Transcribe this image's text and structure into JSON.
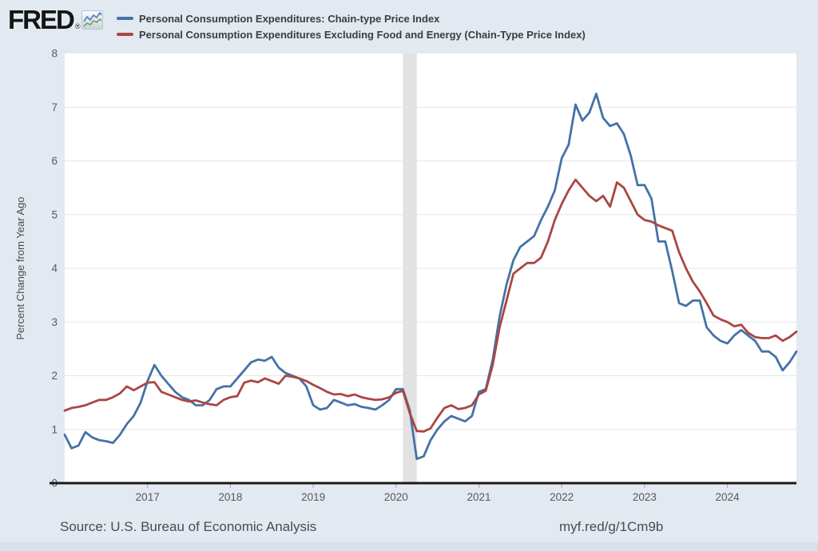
{
  "header": {
    "logo_text": "FRED",
    "registered_mark": "®"
  },
  "legend": [
    {
      "label": "Personal Consumption Expenditures: Chain-type Price Index",
      "color": "#4572a7"
    },
    {
      "label": "Personal Consumption Expenditures Excluding Food and Energy (Chain-Type Price Index)",
      "color": "#aa4643"
    }
  ],
  "footer": {
    "source": "Source: U.S. Bureau of Economic Analysis",
    "link": "myf.red/g/1Cm9b"
  },
  "colors": {
    "background": "#e3e9f1",
    "plot_background": "#ffffff",
    "gridline": "#e6e6e6",
    "zero_axis": "#1a1a1a",
    "recession_band": "#e2e2e2",
    "series_blue": "#4572a7",
    "series_red": "#aa4643"
  },
  "chart_data": {
    "type": "line",
    "title": "",
    "xlabel": "",
    "ylabel": "Percent Change from Year Ago",
    "ylim": [
      0,
      8
    ],
    "yticks": [
      0,
      1,
      2,
      3,
      4,
      5,
      6,
      7,
      8
    ],
    "grid": "horizontal",
    "legend_position": "top-left-header",
    "frequency": "monthly",
    "x_start": "2016-01",
    "x_end": "2024-11",
    "xtick_labels": [
      "2017",
      "2018",
      "2019",
      "2020",
      "2021",
      "2022",
      "2023",
      "2024"
    ],
    "recession_band": {
      "from": "2020-02",
      "to": "2020-04"
    },
    "series": [
      {
        "name": "Personal Consumption Expenditures: Chain-type Price Index",
        "color": "#4572a7",
        "values": [
          0.9,
          0.65,
          0.7,
          0.95,
          0.85,
          0.8,
          0.78,
          0.75,
          0.9,
          1.1,
          1.25,
          1.5,
          1.9,
          2.2,
          2.0,
          1.85,
          1.7,
          1.6,
          1.55,
          1.45,
          1.45,
          1.55,
          1.75,
          1.8,
          1.8,
          1.95,
          2.1,
          2.25,
          2.3,
          2.28,
          2.35,
          2.15,
          2.05,
          2.0,
          1.95,
          1.8,
          1.45,
          1.37,
          1.4,
          1.55,
          1.5,
          1.45,
          1.47,
          1.42,
          1.4,
          1.37,
          1.45,
          1.55,
          1.75,
          1.75,
          1.35,
          0.45,
          0.5,
          0.8,
          1.0,
          1.15,
          1.25,
          1.2,
          1.15,
          1.25,
          1.7,
          1.75,
          2.3,
          3.1,
          3.7,
          4.15,
          4.4,
          4.5,
          4.6,
          4.9,
          5.15,
          5.45,
          6.05,
          6.3,
          7.05,
          6.75,
          6.9,
          7.25,
          6.8,
          6.65,
          6.7,
          6.5,
          6.1,
          5.55,
          5.55,
          5.3,
          4.5,
          4.5,
          3.95,
          3.35,
          3.3,
          3.4,
          3.4,
          2.9,
          2.75,
          2.65,
          2.6,
          2.75,
          2.85,
          2.75,
          2.65,
          2.45,
          2.45,
          2.35,
          2.1,
          2.25,
          2.45
        ]
      },
      {
        "name": "Personal Consumption Expenditures Excluding Food and Energy (Chain-Type Price Index)",
        "color": "#aa4643",
        "values": [
          1.35,
          1.4,
          1.42,
          1.45,
          1.5,
          1.55,
          1.55,
          1.6,
          1.67,
          1.8,
          1.73,
          1.8,
          1.87,
          1.88,
          1.7,
          1.65,
          1.6,
          1.55,
          1.52,
          1.54,
          1.5,
          1.47,
          1.45,
          1.55,
          1.6,
          1.62,
          1.87,
          1.91,
          1.88,
          1.95,
          1.9,
          1.85,
          2.0,
          1.98,
          1.95,
          1.9,
          1.83,
          1.77,
          1.7,
          1.65,
          1.66,
          1.62,
          1.65,
          1.6,
          1.57,
          1.55,
          1.56,
          1.6,
          1.68,
          1.72,
          1.3,
          0.97,
          0.96,
          1.02,
          1.22,
          1.4,
          1.45,
          1.38,
          1.4,
          1.45,
          1.65,
          1.72,
          2.2,
          2.9,
          3.4,
          3.9,
          4.0,
          4.1,
          4.1,
          4.2,
          4.5,
          4.9,
          5.2,
          5.45,
          5.65,
          5.5,
          5.35,
          5.25,
          5.35,
          5.15,
          5.6,
          5.5,
          5.25,
          5.0,
          4.9,
          4.87,
          4.8,
          4.75,
          4.7,
          4.3,
          4.0,
          3.75,
          3.57,
          3.35,
          3.12,
          3.05,
          3.0,
          2.92,
          2.95,
          2.8,
          2.72,
          2.7,
          2.7,
          2.75,
          2.65,
          2.72,
          2.82
        ]
      }
    ]
  }
}
